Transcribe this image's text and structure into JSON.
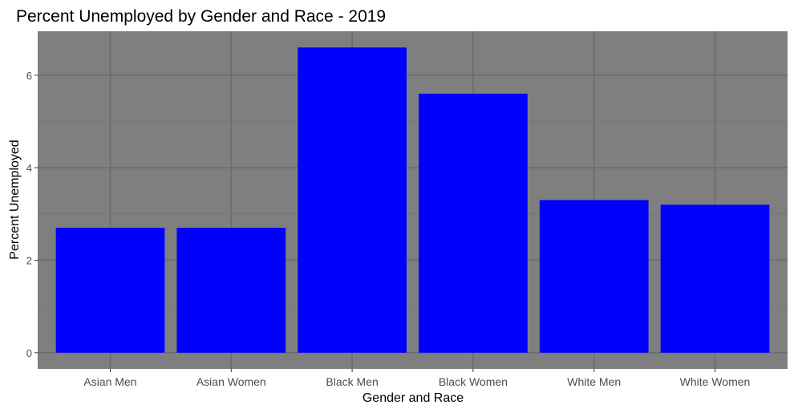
{
  "chart_data": {
    "type": "bar",
    "title": "Percent Unemployed by Gender and Race - 2019",
    "xlabel": "Gender and Race",
    "ylabel": "Percent Unemployed",
    "categories": [
      "Asian Men",
      "Asian Women",
      "Black Men",
      "Black Women",
      "White Men",
      "White Women"
    ],
    "values": [
      2.7,
      2.7,
      6.6,
      5.6,
      3.3,
      3.2
    ],
    "ylim": [
      -0.35,
      6.95
    ],
    "yticks": [
      0,
      2,
      4,
      6
    ],
    "grid": true,
    "legend": "none",
    "colors": {
      "bar": "#0000ff",
      "panel_background": "#7f7f7f",
      "grid_major": "#6a6a6a",
      "grid_minor": "#757575",
      "tick_text": "#4d4d4d",
      "text": "#000000"
    }
  }
}
